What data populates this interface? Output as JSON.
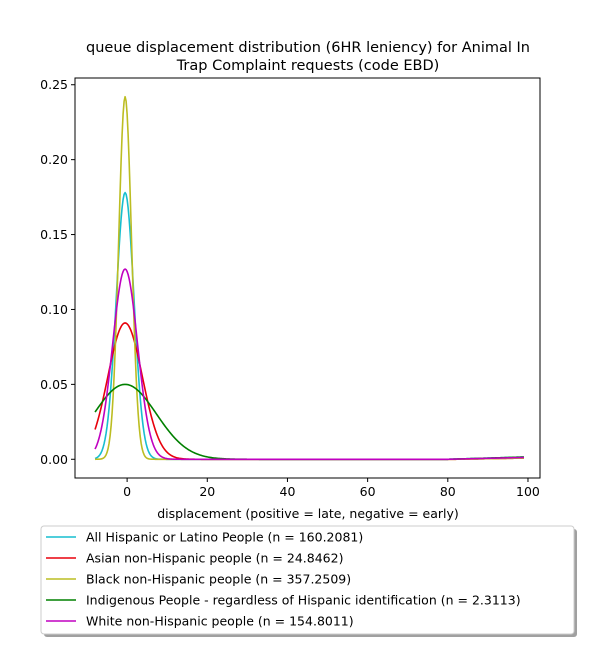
{
  "chart_data": {
    "type": "line",
    "title_line1": "queue displacement distribution (6HR leniency) for Animal In",
    "title_line2": "Trap Complaint  requests (code EBD)",
    "xlabel": "displacement (positive = late, negative = early)",
    "ylabel": "",
    "xlim": [
      -13,
      103
    ],
    "ylim": [
      -0.0125,
      0.2545
    ],
    "xticks": [
      0,
      20,
      40,
      60,
      80,
      100
    ],
    "xtick_labels": [
      "0",
      "20",
      "40",
      "60",
      "80",
      "100"
    ],
    "yticks": [
      0.0,
      0.05,
      0.1,
      0.15,
      0.2,
      0.25
    ],
    "ytick_labels": [
      "0.00",
      "0.05",
      "0.10",
      "0.15",
      "0.20",
      "0.25"
    ],
    "grid": false,
    "legend_position": "below",
    "x_range": [
      -8,
      99
    ],
    "series": [
      {
        "name": "All Hispanic or Latino People (n = 160.2081)",
        "color": "#17becf",
        "peak": 0.178,
        "center": -0.5,
        "sigma": 2.2,
        "tail": 0.0015,
        "tail_start": 80
      },
      {
        "name": "Asian non-Hispanic people (n = 24.8462)",
        "color": "#e8000b",
        "peak": 0.091,
        "center": -0.5,
        "sigma": 4.3,
        "tail": 0.0008,
        "tail_start": 82
      },
      {
        "name": "Black non-Hispanic people (n = 357.2509)",
        "color": "#bcbd22",
        "peak": 0.242,
        "center": -0.5,
        "sigma": 1.6,
        "tail": 0.0008,
        "tail_start": 82
      },
      {
        "name": "Indigenous People - regardless of Hispanic identification (n = 2.3113)",
        "color": "#008000",
        "peak": 0.05,
        "center": -0.5,
        "sigma": 7.8,
        "tail": 0.0015,
        "tail_start": 80
      },
      {
        "name": "White non-Hispanic people (n = 154.8011)",
        "color": "#c000c0",
        "peak": 0.127,
        "center": -0.5,
        "sigma": 3.1,
        "tail": 0.0012,
        "tail_start": 80
      }
    ]
  }
}
